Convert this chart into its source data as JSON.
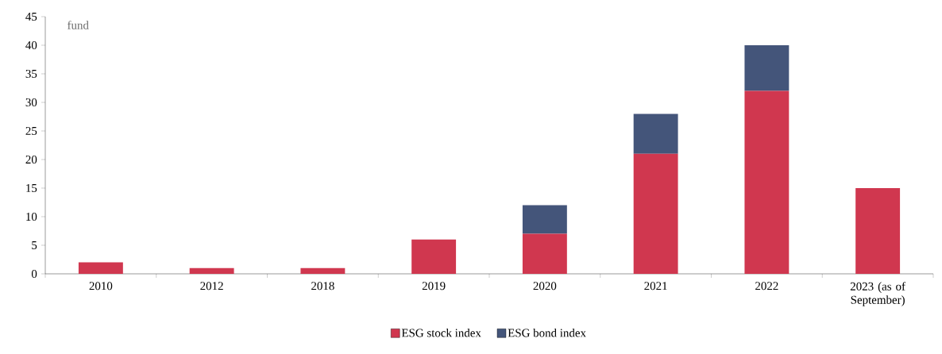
{
  "chart_data": {
    "type": "bar",
    "stacked": true,
    "ylabel": "fund",
    "categories": [
      "2010",
      "2012",
      "2018",
      "2019",
      "2020",
      "2021",
      "2022",
      "2023 (as of September)"
    ],
    "series": [
      {
        "name": "ESG stock index",
        "color": "#d0374f",
        "values": [
          2,
          1,
          1,
          6,
          7,
          21,
          32,
          15
        ]
      },
      {
        "name": "ESG bond index",
        "color": "#44557a",
        "values": [
          null,
          null,
          null,
          null,
          5,
          7,
          8,
          null
        ]
      }
    ],
    "ylim": [
      0,
      45
    ],
    "yticks": [
      0,
      5,
      10,
      15,
      20,
      25,
      30,
      35,
      40,
      45
    ],
    "grid": false,
    "legend": "bottom"
  }
}
